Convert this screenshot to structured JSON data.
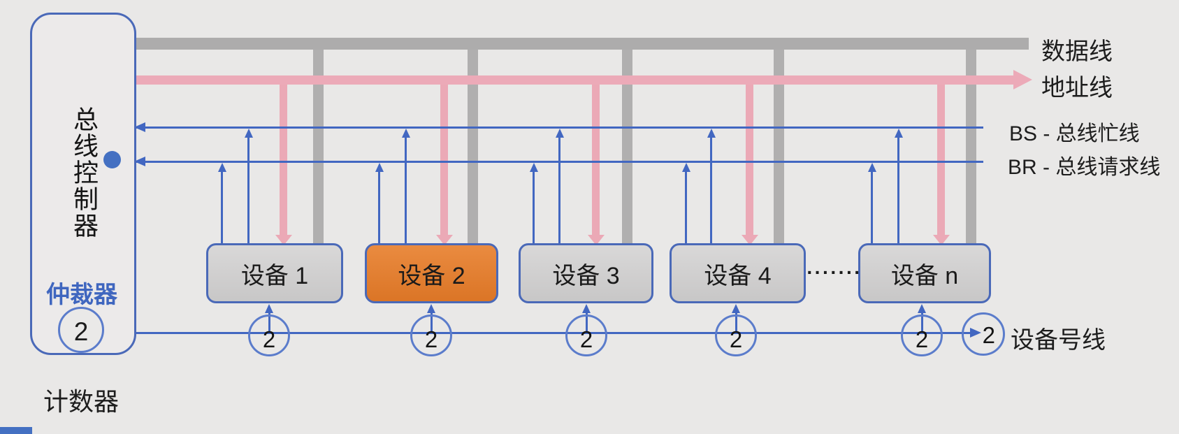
{
  "controller": {
    "title_vertical": "总线控制器",
    "arbiter": "仲裁器",
    "counter_value": "2",
    "counter_label": "计数器"
  },
  "bus_labels": {
    "data": "数据线",
    "address": "地址线",
    "bus_busy": "BS - 总线忙线",
    "bus_request": "BR - 总线请求线",
    "device_number": "设备号线"
  },
  "devices": [
    {
      "label": "设备 1",
      "counter": "2",
      "highlighted": false
    },
    {
      "label": "设备 2",
      "counter": "2",
      "highlighted": true
    },
    {
      "label": "设备 3",
      "counter": "2",
      "highlighted": false
    },
    {
      "label": "设备 4",
      "counter": "2",
      "highlighted": false
    },
    {
      "label": "设备 n",
      "counter": "2",
      "highlighted": false
    }
  ],
  "ellipsis": "·······",
  "line_end_counter": "2",
  "colors": {
    "background": "#e9e8e7",
    "data_bus_gray": "#adacac",
    "address_bus_pink": "#ecaab8",
    "control_line_blue": "#4267c1",
    "device_fill_gray": "#d2d1d1",
    "highlight_orange": "#e2812f",
    "arbiter_text_blue": "#3f66bf"
  }
}
